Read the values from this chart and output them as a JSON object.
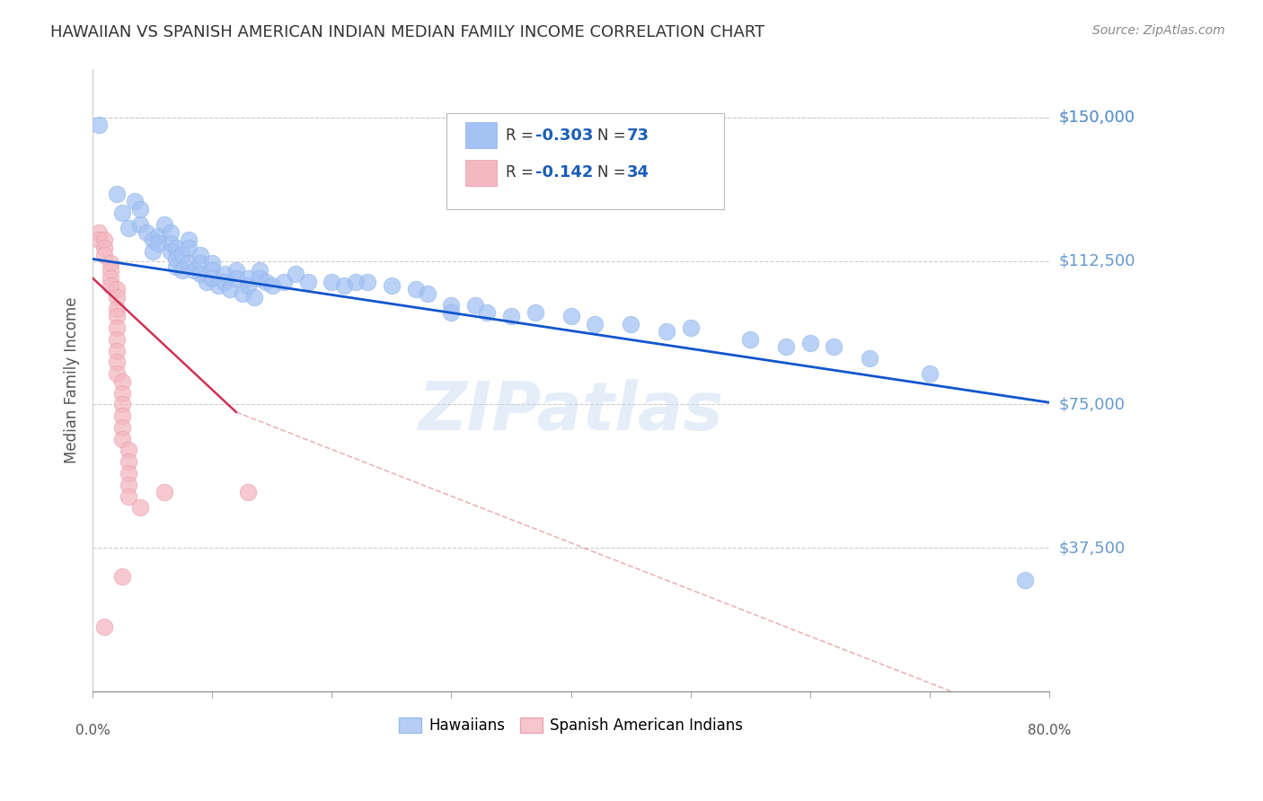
{
  "title": "HAWAIIAN VS SPANISH AMERICAN INDIAN MEDIAN FAMILY INCOME CORRELATION CHART",
  "source": "Source: ZipAtlas.com",
  "ylabel": "Median Family Income",
  "ytick_labels": [
    "$37,500",
    "$75,000",
    "$112,500",
    "$150,000"
  ],
  "ytick_values": [
    37500,
    75000,
    112500,
    150000
  ],
  "ymin": 0,
  "ymax": 162500,
  "xmin": 0.0,
  "xmax": 0.8,
  "watermark": "ZIPatlas",
  "blue_color": "#a4c2f4",
  "pink_color": "#f4b8c1",
  "blue_line_color": "#1155cc",
  "pink_line_color": "#cc3355",
  "pink_dash_color": "#e8a0a8",
  "ytick_color": "#6699cc",
  "blue_scatter": [
    [
      0.005,
      148000
    ],
    [
      0.02,
      130000
    ],
    [
      0.025,
      125000
    ],
    [
      0.03,
      121000
    ],
    [
      0.035,
      128000
    ],
    [
      0.04,
      126000
    ],
    [
      0.04,
      122000
    ],
    [
      0.045,
      120000
    ],
    [
      0.05,
      118000
    ],
    [
      0.05,
      115000
    ],
    [
      0.055,
      119000
    ],
    [
      0.055,
      117000
    ],
    [
      0.06,
      122000
    ],
    [
      0.065,
      120000
    ],
    [
      0.065,
      117000
    ],
    [
      0.065,
      115000
    ],
    [
      0.07,
      116000
    ],
    [
      0.07,
      113000
    ],
    [
      0.07,
      111000
    ],
    [
      0.075,
      114000
    ],
    [
      0.075,
      110000
    ],
    [
      0.08,
      118000
    ],
    [
      0.08,
      116000
    ],
    [
      0.08,
      112000
    ],
    [
      0.085,
      110000
    ],
    [
      0.09,
      114000
    ],
    [
      0.09,
      112000
    ],
    [
      0.09,
      109000
    ],
    [
      0.095,
      107000
    ],
    [
      0.1,
      112000
    ],
    [
      0.1,
      110000
    ],
    [
      0.1,
      108000
    ],
    [
      0.105,
      106000
    ],
    [
      0.11,
      109000
    ],
    [
      0.11,
      107000
    ],
    [
      0.115,
      105000
    ],
    [
      0.12,
      110000
    ],
    [
      0.12,
      108000
    ],
    [
      0.125,
      104000
    ],
    [
      0.13,
      108000
    ],
    [
      0.13,
      106000
    ],
    [
      0.135,
      103000
    ],
    [
      0.14,
      110000
    ],
    [
      0.14,
      108000
    ],
    [
      0.145,
      107000
    ],
    [
      0.15,
      106000
    ],
    [
      0.16,
      107000
    ],
    [
      0.17,
      109000
    ],
    [
      0.18,
      107000
    ],
    [
      0.2,
      107000
    ],
    [
      0.21,
      106000
    ],
    [
      0.22,
      107000
    ],
    [
      0.23,
      107000
    ],
    [
      0.25,
      106000
    ],
    [
      0.27,
      105000
    ],
    [
      0.28,
      104000
    ],
    [
      0.3,
      101000
    ],
    [
      0.3,
      99000
    ],
    [
      0.32,
      101000
    ],
    [
      0.33,
      99000
    ],
    [
      0.35,
      98000
    ],
    [
      0.37,
      99000
    ],
    [
      0.4,
      98000
    ],
    [
      0.42,
      96000
    ],
    [
      0.45,
      96000
    ],
    [
      0.48,
      94000
    ],
    [
      0.5,
      95000
    ],
    [
      0.55,
      92000
    ],
    [
      0.58,
      90000
    ],
    [
      0.6,
      91000
    ],
    [
      0.62,
      90000
    ],
    [
      0.65,
      87000
    ],
    [
      0.7,
      83000
    ],
    [
      0.78,
      29000
    ]
  ],
  "pink_scatter": [
    [
      0.005,
      120000
    ],
    [
      0.005,
      118000
    ],
    [
      0.01,
      118000
    ],
    [
      0.01,
      116000
    ],
    [
      0.01,
      114000
    ],
    [
      0.015,
      112000
    ],
    [
      0.015,
      110000
    ],
    [
      0.015,
      108000
    ],
    [
      0.015,
      106000
    ],
    [
      0.02,
      105000
    ],
    [
      0.02,
      103000
    ],
    [
      0.02,
      100000
    ],
    [
      0.02,
      98000
    ],
    [
      0.02,
      95000
    ],
    [
      0.02,
      92000
    ],
    [
      0.02,
      89000
    ],
    [
      0.02,
      86000
    ],
    [
      0.02,
      83000
    ],
    [
      0.025,
      81000
    ],
    [
      0.025,
      78000
    ],
    [
      0.025,
      75000
    ],
    [
      0.025,
      72000
    ],
    [
      0.025,
      69000
    ],
    [
      0.025,
      66000
    ],
    [
      0.03,
      63000
    ],
    [
      0.03,
      60000
    ],
    [
      0.03,
      57000
    ],
    [
      0.03,
      54000
    ],
    [
      0.03,
      51000
    ],
    [
      0.04,
      48000
    ],
    [
      0.06,
      52000
    ],
    [
      0.13,
      52000
    ],
    [
      0.025,
      30000
    ],
    [
      0.01,
      17000
    ]
  ],
  "blue_line": [
    [
      0.0,
      113000
    ],
    [
      0.8,
      75500
    ]
  ],
  "pink_line_solid": [
    [
      0.0,
      108000
    ],
    [
      0.12,
      73000
    ]
  ],
  "pink_line_dash": [
    [
      0.12,
      73000
    ],
    [
      0.8,
      -10000
    ]
  ]
}
